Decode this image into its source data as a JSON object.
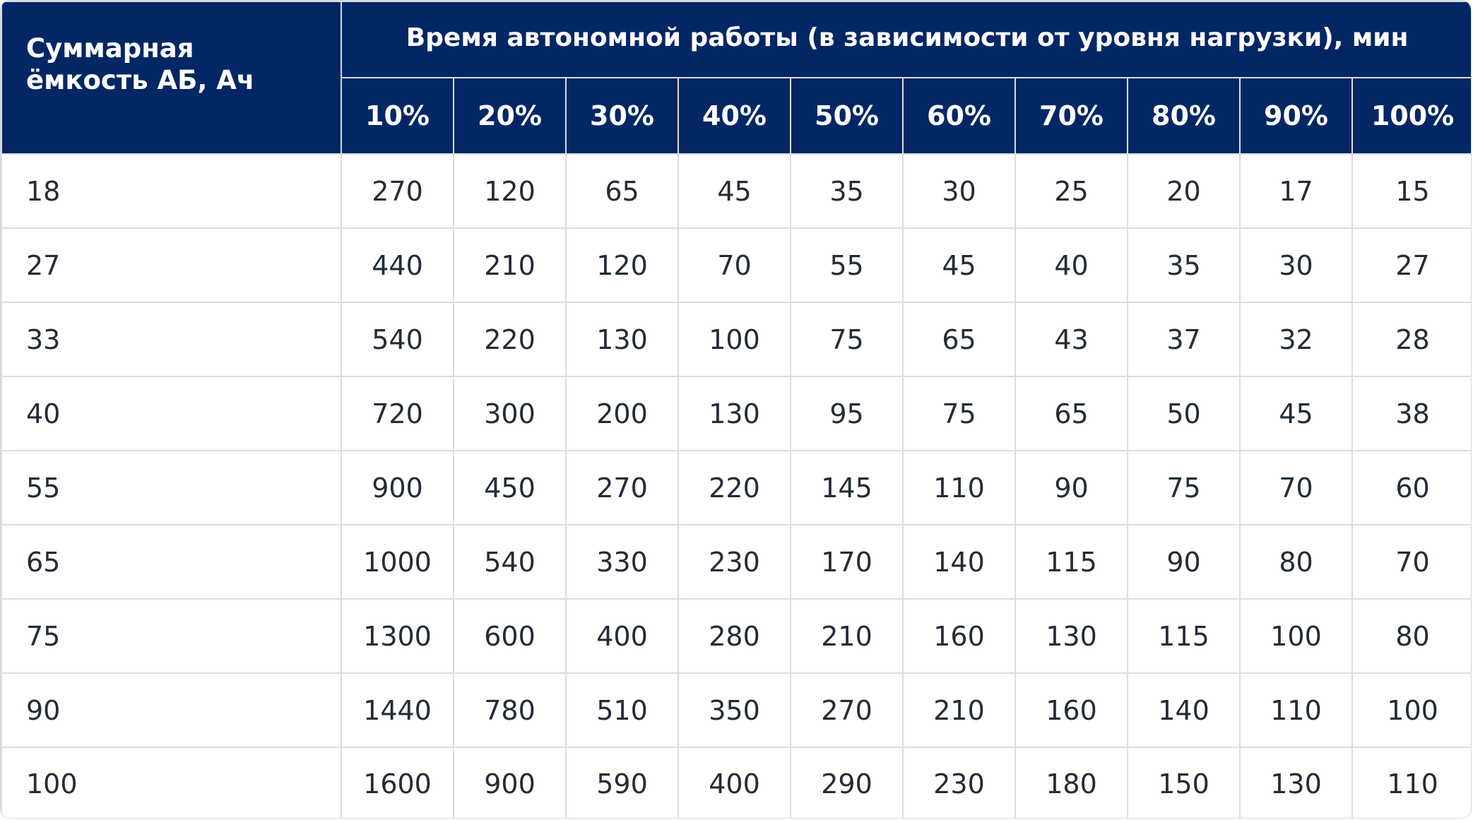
{
  "table": {
    "header": {
      "capacity_label": "Суммарная ёмкость АБ, Ач",
      "group_label": "Время автономной работы (в зависимости от уровня нагрузки), мин",
      "load_levels": [
        "10%",
        "20%",
        "30%",
        "40%",
        "50%",
        "60%",
        "70%",
        "80%",
        "90%",
        "100%"
      ]
    },
    "rows": [
      {
        "capacity": "18",
        "values": [
          "270",
          "120",
          "65",
          "45",
          "35",
          "30",
          "25",
          "20",
          "17",
          "15"
        ]
      },
      {
        "capacity": "27",
        "values": [
          "440",
          "210",
          "120",
          "70",
          "55",
          "45",
          "40",
          "35",
          "30",
          "27"
        ]
      },
      {
        "capacity": "33",
        "values": [
          "540",
          "220",
          "130",
          "100",
          "75",
          "65",
          "43",
          "37",
          "32",
          "28"
        ]
      },
      {
        "capacity": "40",
        "values": [
          "720",
          "300",
          "200",
          "130",
          "95",
          "75",
          "65",
          "50",
          "45",
          "38"
        ]
      },
      {
        "capacity": "55",
        "values": [
          "900",
          "450",
          "270",
          "220",
          "145",
          "110",
          "90",
          "75",
          "70",
          "60"
        ]
      },
      {
        "capacity": "65",
        "values": [
          "1000",
          "540",
          "330",
          "230",
          "170",
          "140",
          "115",
          "90",
          "80",
          "70"
        ]
      },
      {
        "capacity": "75",
        "values": [
          "1300",
          "600",
          "400",
          "280",
          "210",
          "160",
          "130",
          "115",
          "100",
          "80"
        ]
      },
      {
        "capacity": "90",
        "values": [
          "1440",
          "780",
          "510",
          "350",
          "270",
          "210",
          "160",
          "140",
          "110",
          "100"
        ]
      },
      {
        "capacity": "100",
        "values": [
          "1600",
          "900",
          "590",
          "400",
          "290",
          "230",
          "180",
          "150",
          "130",
          "110"
        ]
      }
    ]
  },
  "colors": {
    "header_bg": "#032765",
    "header_text": "#ffffff",
    "grid": "#d9dde3",
    "body_text": "#232b36"
  }
}
